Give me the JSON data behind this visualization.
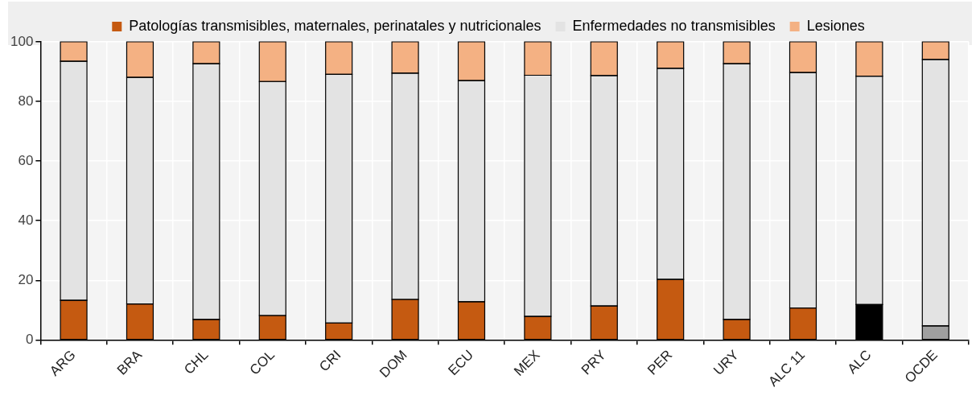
{
  "chart_data": {
    "type": "bar",
    "stacked": true,
    "categories": [
      "ARG",
      "BRA",
      "CHL",
      "COL",
      "CRI",
      "DOM",
      "ECU",
      "MEX",
      "PRY",
      "PER",
      "URY",
      "ALC 11",
      "ALC",
      "OCDE"
    ],
    "series": [
      {
        "name": "Patologías transmisibles, maternales, perinatales y nutricionales",
        "color": "#c55a11",
        "colors": [
          "#c55a11",
          "#c55a11",
          "#c55a11",
          "#c55a11",
          "#c55a11",
          "#c55a11",
          "#c55a11",
          "#c55a11",
          "#c55a11",
          "#c55a11",
          "#c55a11",
          "#c55a11",
          "#000000",
          "#a0a0a0"
        ],
        "values": [
          13.3,
          12.1,
          6.9,
          8.2,
          5.7,
          13.6,
          12.8,
          7.9,
          11.4,
          20.3,
          6.9,
          10.7,
          11.9,
          4.7
        ]
      },
      {
        "name": "Enfermedades no transmisibles",
        "color": "#e3e3e3",
        "values": [
          80.2,
          76.0,
          85.8,
          78.5,
          83.4,
          75.9,
          74.2,
          80.9,
          77.3,
          70.8,
          85.8,
          79.0,
          76.6,
          89.4
        ]
      },
      {
        "name": "Lesiones",
        "color": "#f4b183",
        "values": [
          6.5,
          11.9,
          7.3,
          13.3,
          10.9,
          10.5,
          13.0,
          11.2,
          11.3,
          8.9,
          7.3,
          10.3,
          11.5,
          5.9
        ]
      }
    ],
    "ylim": [
      0,
      100
    ],
    "yticks": [
      0,
      20,
      40,
      60,
      80,
      100
    ],
    "grid": true,
    "legend": "top"
  }
}
